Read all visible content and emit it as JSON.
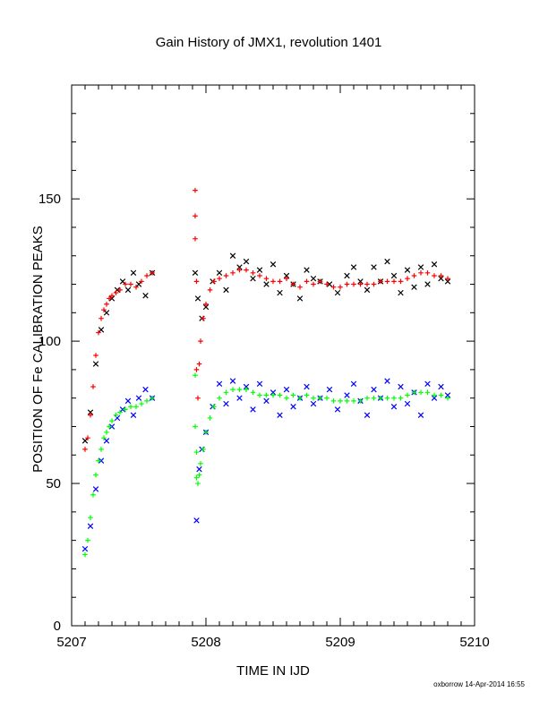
{
  "chart_data": {
    "type": "scatter",
    "title": "Gain History of JMX1, revolution 1401",
    "xlabel": "TIME IN IJD",
    "ylabel": "POSITION OF Fe CALIBRATION PEAKS",
    "xlim": [
      5207,
      5210
    ],
    "ylim": [
      0,
      190
    ],
    "x_ticks": [
      5207,
      5208,
      5209,
      5210
    ],
    "x_tick_labels": [
      "5207",
      "5208",
      "5209",
      "5210"
    ],
    "y_ticks": [
      0,
      50,
      100,
      150
    ],
    "y_tick_labels": [
      "0",
      "50",
      "100",
      "150"
    ],
    "grid": false,
    "legend": "none",
    "series": [
      {
        "marker": "x",
        "color": "#000000",
        "x": [
          5207.1,
          5207.14,
          5207.18,
          5207.22,
          5207.26,
          5207.3,
          5207.34,
          5207.38,
          5207.42,
          5207.46,
          5207.5,
          5207.55,
          5207.6,
          5207.92,
          5207.94,
          5207.97,
          5208.0,
          5208.05,
          5208.1,
          5208.15,
          5208.2,
          5208.25,
          5208.3,
          5208.35,
          5208.4,
          5208.45,
          5208.5,
          5208.55,
          5208.6,
          5208.65,
          5208.7,
          5208.75,
          5208.8,
          5208.85,
          5208.92,
          5208.98,
          5209.05,
          5209.1,
          5209.15,
          5209.2,
          5209.25,
          5209.3,
          5209.35,
          5209.4,
          5209.45,
          5209.5,
          5209.55,
          5209.6,
          5209.65,
          5209.7,
          5209.75,
          5209.8
        ],
        "y": [
          65,
          75,
          92,
          104,
          110,
          115,
          118,
          121,
          118,
          124,
          120,
          116,
          124,
          124,
          115,
          108,
          112,
          121,
          124,
          118,
          130,
          126,
          128,
          122,
          125,
          120,
          127,
          117,
          123,
          120,
          115,
          125,
          122,
          121,
          120,
          117,
          123,
          126,
          121,
          118,
          126,
          121,
          128,
          123,
          117,
          125,
          119,
          126,
          120,
          127,
          122,
          121
        ]
      },
      {
        "marker": "+",
        "color": "#ff0000",
        "x": [
          5207.1,
          5207.12,
          5207.14,
          5207.16,
          5207.18,
          5207.2,
          5207.22,
          5207.24,
          5207.26,
          5207.28,
          5207.3,
          5207.33,
          5207.36,
          5207.4,
          5207.44,
          5207.48,
          5207.52,
          5207.56,
          5207.6,
          5207.92,
          5207.92,
          5207.92,
          5207.93,
          5207.93,
          5207.94,
          5207.95,
          5207.96,
          5207.98,
          5208.0,
          5208.03,
          5208.06,
          5208.1,
          5208.15,
          5208.2,
          5208.25,
          5208.3,
          5208.35,
          5208.4,
          5208.45,
          5208.5,
          5208.55,
          5208.6,
          5208.65,
          5208.7,
          5208.75,
          5208.8,
          5208.85,
          5208.9,
          5208.95,
          5209.0,
          5209.05,
          5209.1,
          5209.15,
          5209.2,
          5209.25,
          5209.3,
          5209.35,
          5209.4,
          5209.45,
          5209.5,
          5209.55,
          5209.6,
          5209.65,
          5209.7,
          5209.75,
          5209.8
        ],
        "y": [
          62,
          66,
          74,
          84,
          95,
          103,
          108,
          111,
          113,
          115,
          116,
          117,
          118,
          120,
          120,
          119,
          121,
          123,
          124,
          153,
          144,
          136,
          121,
          90,
          80,
          92,
          100,
          108,
          113,
          118,
          121,
          122,
          123,
          124,
          125,
          125,
          124,
          123,
          122,
          121,
          121,
          122,
          120,
          119,
          121,
          120,
          121,
          120,
          119,
          119,
          120,
          120,
          120,
          120,
          120,
          121,
          121,
          121,
          121,
          122,
          123,
          124,
          124,
          123,
          123,
          122
        ]
      },
      {
        "marker": "x",
        "color": "#0000ff",
        "x": [
          5207.1,
          5207.14,
          5207.18,
          5207.22,
          5207.26,
          5207.3,
          5207.34,
          5207.38,
          5207.42,
          5207.46,
          5207.5,
          5207.55,
          5207.6,
          5207.93,
          5207.95,
          5207.97,
          5208.0,
          5208.05,
          5208.1,
          5208.15,
          5208.2,
          5208.25,
          5208.3,
          5208.35,
          5208.4,
          5208.45,
          5208.5,
          5208.55,
          5208.6,
          5208.65,
          5208.7,
          5208.75,
          5208.8,
          5208.85,
          5208.92,
          5208.98,
          5209.05,
          5209.1,
          5209.15,
          5209.2,
          5209.25,
          5209.3,
          5209.35,
          5209.4,
          5209.45,
          5209.5,
          5209.55,
          5209.6,
          5209.65,
          5209.7,
          5209.75,
          5209.8
        ],
        "y": [
          27,
          35,
          48,
          58,
          65,
          70,
          73,
          76,
          79,
          74,
          80,
          83,
          80,
          37,
          55,
          62,
          68,
          77,
          85,
          78,
          86,
          80,
          84,
          76,
          85,
          79,
          82,
          74,
          83,
          77,
          80,
          84,
          78,
          80,
          83,
          76,
          81,
          85,
          79,
          74,
          83,
          80,
          86,
          77,
          84,
          78,
          82,
          74,
          85,
          80,
          84,
          81
        ]
      },
      {
        "marker": "+",
        "color": "#00ff00",
        "x": [
          5207.1,
          5207.12,
          5207.14,
          5207.16,
          5207.18,
          5207.2,
          5207.22,
          5207.24,
          5207.26,
          5207.28,
          5207.3,
          5207.33,
          5207.36,
          5207.4,
          5207.44,
          5207.48,
          5207.52,
          5207.56,
          5207.6,
          5207.92,
          5207.92,
          5207.93,
          5207.93,
          5207.94,
          5207.95,
          5207.96,
          5207.98,
          5208.0,
          5208.03,
          5208.06,
          5208.1,
          5208.15,
          5208.2,
          5208.25,
          5208.3,
          5208.35,
          5208.4,
          5208.45,
          5208.5,
          5208.55,
          5208.6,
          5208.65,
          5208.7,
          5208.75,
          5208.8,
          5208.85,
          5208.9,
          5208.95,
          5209.0,
          5209.05,
          5209.1,
          5209.15,
          5209.2,
          5209.25,
          5209.3,
          5209.35,
          5209.4,
          5209.45,
          5209.5,
          5209.55,
          5209.6,
          5209.65,
          5209.7,
          5209.75,
          5209.8
        ],
        "y": [
          25,
          30,
          38,
          46,
          53,
          58,
          62,
          66,
          68,
          70,
          72,
          74,
          75,
          76,
          77,
          77,
          78,
          79,
          80,
          88,
          70,
          61,
          52,
          50,
          53,
          57,
          62,
          68,
          73,
          77,
          80,
          82,
          83,
          83,
          83,
          82,
          81,
          81,
          81,
          81,
          80,
          81,
          80,
          81,
          80,
          80,
          80,
          79,
          79,
          79,
          79,
          79,
          80,
          80,
          80,
          80,
          80,
          80,
          81,
          82,
          82,
          82,
          81,
          81,
          80
        ]
      }
    ]
  },
  "footer": {
    "credit": "oxborrow 14-Apr-2014 16:55"
  }
}
